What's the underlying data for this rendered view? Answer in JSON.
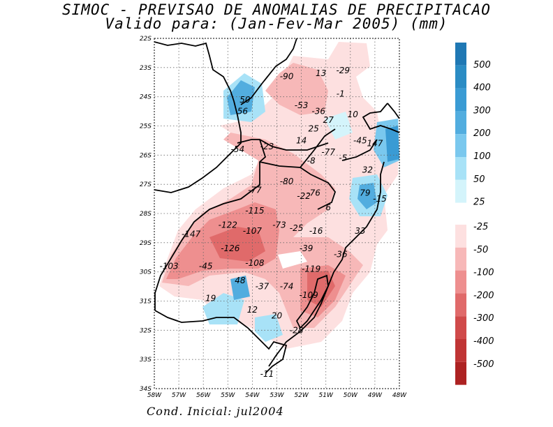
{
  "title": "SIMOC - PREVISAO DE ANOMALIAS DE PRECIPITACAO",
  "subtitle": "Valido para: (Jan-Fev-Mar 2005) (mm)",
  "footer": "Cond. Inicial: jul2004",
  "map_labels": {
    "lat_ticks": [
      "22S",
      "23S",
      "24S",
      "25S",
      "26S",
      "27S",
      "28S",
      "29S",
      "30S",
      "31S",
      "32S",
      "33S",
      "34S"
    ],
    "lon_ticks": [
      "58W",
      "57W",
      "56W",
      "55W",
      "54W",
      "53W",
      "52W",
      "51W",
      "50W",
      "49W",
      "48W"
    ]
  },
  "chart_data": {
    "type": "heatmap",
    "title": "SIMOC - PREVISAO DE ANOMALIAS DE PRECIPITACAO",
    "subtitle": "Valido para: (Jan-Fev-Mar 2005) (mm)",
    "units": "mm",
    "lon_range": [
      -58,
      -48
    ],
    "lat_range": [
      -34,
      -22
    ],
    "grid": true,
    "legend": "right",
    "colorbar": {
      "positive": [
        {
          "label": "500",
          "color": "#1f78b4"
        },
        {
          "label": "400",
          "color": "#2b8cc4"
        },
        {
          "label": "300",
          "color": "#3a9bd4"
        },
        {
          "label": "200",
          "color": "#52addf"
        },
        {
          "label": "100",
          "color": "#7ac8ee"
        },
        {
          "label": "50",
          "color": "#a8e2f7"
        },
        {
          "label": "25",
          "color": "#d4f4fb"
        }
      ],
      "negative": [
        {
          "label": "-25",
          "color": "#fde0e0"
        },
        {
          "label": "-50",
          "color": "#f7b8b8"
        },
        {
          "label": "-100",
          "color": "#ee8f8f"
        },
        {
          "label": "-200",
          "color": "#e06a6a"
        },
        {
          "label": "-300",
          "color": "#d04a4a"
        },
        {
          "label": "-400",
          "color": "#c03535"
        },
        {
          "label": "-500",
          "color": "#ad2222"
        }
      ]
    },
    "values": [
      {
        "lon": -52.6,
        "lat": -23.3,
        "v": "-90"
      },
      {
        "lon": -51.2,
        "lat": -23.2,
        "v": "13"
      },
      {
        "lon": -50.3,
        "lat": -23.1,
        "v": "-29"
      },
      {
        "lon": -50.4,
        "lat": -23.9,
        "v": "-1"
      },
      {
        "lon": -54.3,
        "lat": -24.1,
        "v": "50"
      },
      {
        "lon": -54.4,
        "lat": -24.5,
        "v": "56"
      },
      {
        "lon": -52.0,
        "lat": -24.3,
        "v": "-53"
      },
      {
        "lon": -51.3,
        "lat": -24.5,
        "v": "-36"
      },
      {
        "lon": -49.9,
        "lat": -24.6,
        "v": "10"
      },
      {
        "lon": -50.9,
        "lat": -24.8,
        "v": "27"
      },
      {
        "lon": -51.5,
        "lat": -25.1,
        "v": "25"
      },
      {
        "lon": -52.0,
        "lat": -25.5,
        "v": "14"
      },
      {
        "lon": -53.4,
        "lat": -25.7,
        "v": "-23"
      },
      {
        "lon": -54.6,
        "lat": -25.8,
        "v": "-54"
      },
      {
        "lon": -49.6,
        "lat": -25.5,
        "v": "-45"
      },
      {
        "lon": -49.0,
        "lat": -25.6,
        "v": "147"
      },
      {
        "lon": -50.9,
        "lat": -25.9,
        "v": "-77"
      },
      {
        "lon": -50.3,
        "lat": -26.1,
        "v": "-5"
      },
      {
        "lon": -51.6,
        "lat": -26.2,
        "v": "-8"
      },
      {
        "lon": -49.3,
        "lat": -26.5,
        "v": "32"
      },
      {
        "lon": -53.9,
        "lat": -27.2,
        "v": "-77"
      },
      {
        "lon": -52.6,
        "lat": -26.9,
        "v": "-80"
      },
      {
        "lon": -51.5,
        "lat": -27.3,
        "v": "-76"
      },
      {
        "lon": -51.9,
        "lat": -27.4,
        "v": "-22"
      },
      {
        "lon": -49.4,
        "lat": -27.3,
        "v": "79"
      },
      {
        "lon": -48.8,
        "lat": -27.5,
        "v": "-15"
      },
      {
        "lon": -50.9,
        "lat": -27.8,
        "v": "6"
      },
      {
        "lon": -53.9,
        "lat": -27.9,
        "v": "-115"
      },
      {
        "lon": -55.0,
        "lat": -28.4,
        "v": "-122"
      },
      {
        "lon": -52.9,
        "lat": -28.4,
        "v": "-73"
      },
      {
        "lon": -52.2,
        "lat": -28.5,
        "v": "-25"
      },
      {
        "lon": -51.4,
        "lat": -28.6,
        "v": "-16"
      },
      {
        "lon": -49.6,
        "lat": -28.6,
        "v": "33"
      },
      {
        "lon": -56.5,
        "lat": -28.7,
        "v": "-147"
      },
      {
        "lon": -54.0,
        "lat": -28.6,
        "v": "-107"
      },
      {
        "lon": -54.9,
        "lat": -29.2,
        "v": "-126"
      },
      {
        "lon": -51.8,
        "lat": -29.2,
        "v": "-39"
      },
      {
        "lon": -50.4,
        "lat": -29.4,
        "v": "-36"
      },
      {
        "lon": -57.4,
        "lat": -29.8,
        "v": "-103"
      },
      {
        "lon": -55.9,
        "lat": -29.8,
        "v": "-45"
      },
      {
        "lon": -53.9,
        "lat": -29.7,
        "v": "-108"
      },
      {
        "lon": -51.6,
        "lat": -29.9,
        "v": "-119"
      },
      {
        "lon": -54.5,
        "lat": -30.3,
        "v": "48"
      },
      {
        "lon": -53.6,
        "lat": -30.5,
        "v": "-37"
      },
      {
        "lon": -52.6,
        "lat": -30.5,
        "v": "-74"
      },
      {
        "lon": -51.7,
        "lat": -30.8,
        "v": "-109"
      },
      {
        "lon": -55.7,
        "lat": -30.9,
        "v": "19"
      },
      {
        "lon": -54.0,
        "lat": -31.3,
        "v": "12"
      },
      {
        "lon": -53.0,
        "lat": -31.5,
        "v": "20"
      },
      {
        "lon": -52.2,
        "lat": -32.0,
        "v": "-28"
      },
      {
        "lon": -53.4,
        "lat": -33.5,
        "v": "-11"
      }
    ]
  }
}
